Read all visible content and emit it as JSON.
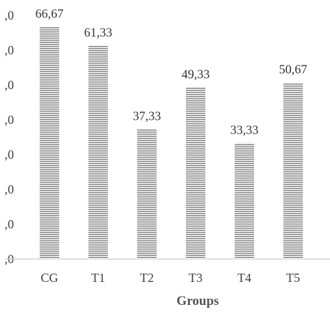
{
  "chart_data": {
    "type": "bar",
    "categories": [
      "CG",
      "T1",
      "T2",
      "T3",
      "T4",
      "T5"
    ],
    "values": [
      66.67,
      61.33,
      37.33,
      49.33,
      33.33,
      50.67
    ],
    "data_labels": [
      "66,67",
      "61,33",
      "37,33",
      "49,33",
      "33,33",
      "50,67"
    ],
    "xlabel": "Groups",
    "ylabel": "",
    "y_tick_labels": [
      ",0",
      ",0",
      ",0",
      ",0",
      ",0",
      ",0",
      ",0",
      ",0"
    ],
    "ylim": [
      0,
      70
    ],
    "y_tick_step": 10,
    "grid": false,
    "bar_fill": "horizontal-stripes",
    "colors": {
      "bar_stripe": "#8a8a8a",
      "bar_background": "#ffffff",
      "axis": "#d0d0d0",
      "text": "#404040"
    }
  }
}
